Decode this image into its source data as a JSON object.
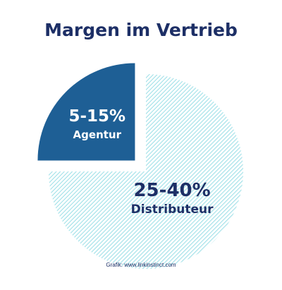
{
  "chart_data": {
    "type": "pie",
    "title": "Margen im Vertrieb",
    "slices": [
      {
        "label": "Agentur",
        "value_label": "5-15%",
        "share": 0.25,
        "exploded": true,
        "color": "#1e5f95",
        "text_color": "#ffffff",
        "fill": "solid"
      },
      {
        "label": "Distributeur",
        "value_label": "25-40%",
        "share": 0.75,
        "exploded": false,
        "color": "#7fd6e0",
        "text_color": "#1d2f66",
        "fill": "hatched"
      }
    ],
    "legend": "none"
  },
  "footer": {
    "credit": "Grafik: www.linkinstinct.com"
  }
}
